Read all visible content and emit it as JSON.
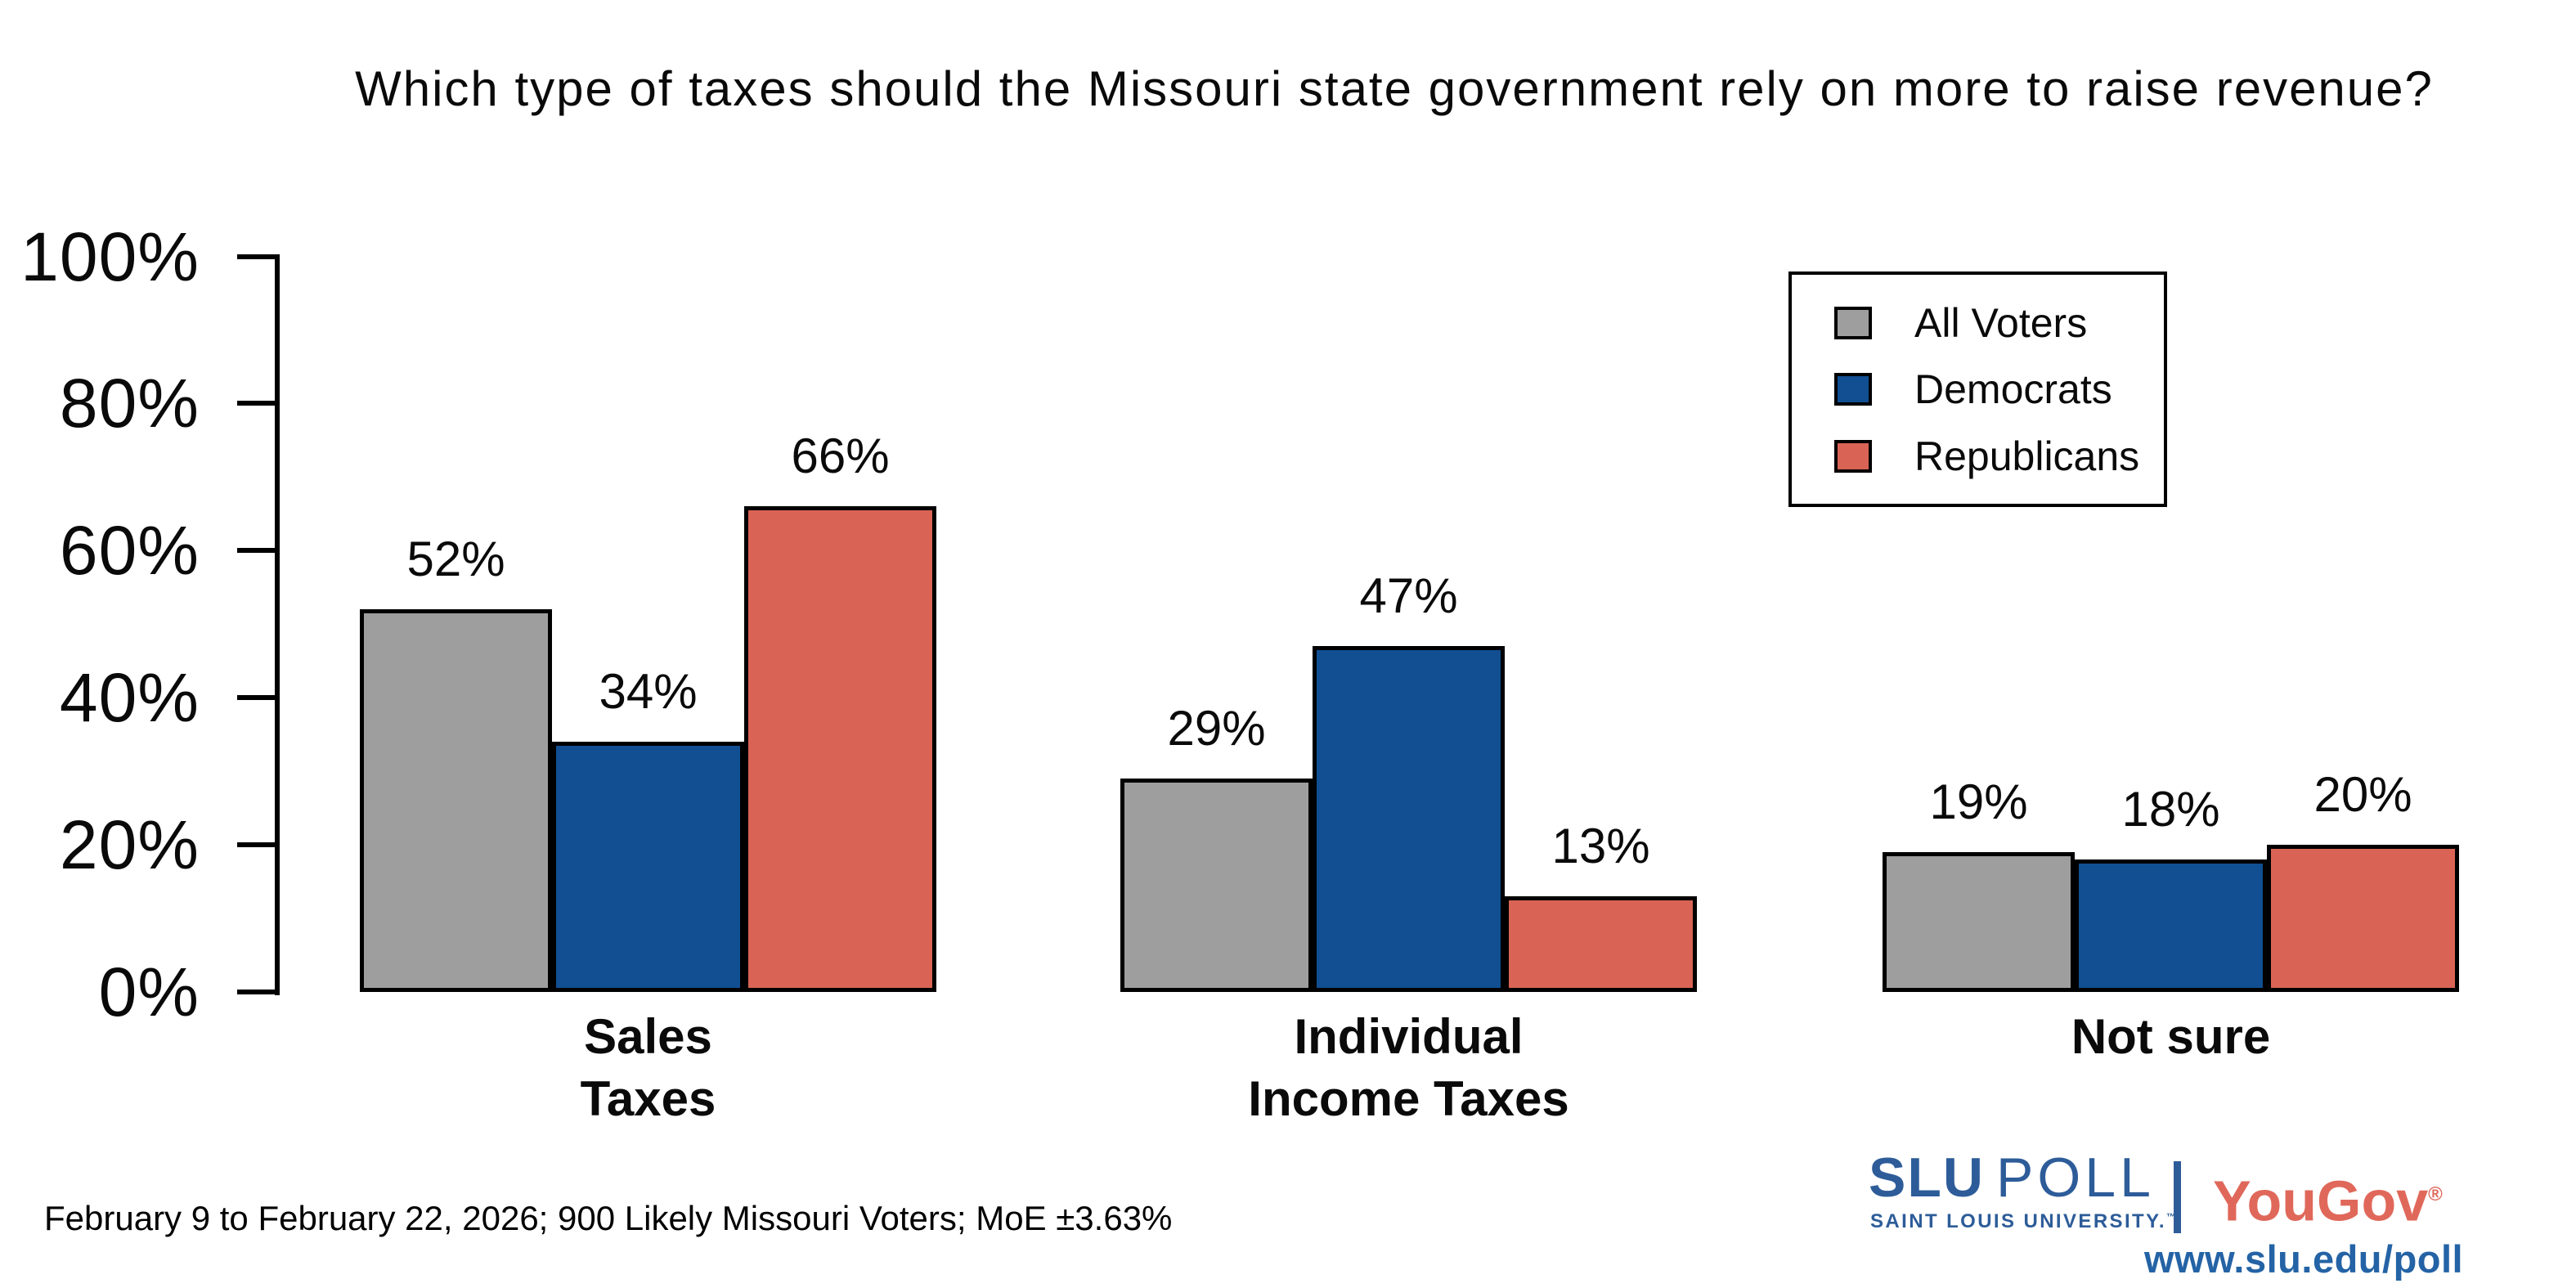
{
  "title": "Which type of taxes should the Missouri state government rely on more to raise revenue?",
  "footnote": "February 9 to February 22, 2026; 900 Likely Missouri Voters; MoE ±3.63%",
  "chart_data": {
    "type": "bar",
    "title": "Which type of taxes should the Missouri state government rely on more to raise revenue?",
    "categories": [
      "Sales Taxes",
      "Individual Income Taxes",
      "Not sure"
    ],
    "category_labels": [
      [
        "Sales",
        "Taxes"
      ],
      [
        "Individual",
        "Income Taxes"
      ],
      [
        "Not sure"
      ]
    ],
    "series": [
      {
        "name": "All Voters",
        "color": "#9E9E9E",
        "values": [
          52,
          29,
          19
        ]
      },
      {
        "name": "Democrats",
        "color": "#114F92",
        "values": [
          34,
          47,
          18
        ]
      },
      {
        "name": "Republicans",
        "color": "#D96455",
        "values": [
          66,
          13,
          20
        ]
      }
    ],
    "value_labels": [
      [
        "52%",
        "34%",
        "66%"
      ],
      [
        "29%",
        "47%",
        "13%"
      ],
      [
        "19%",
        "18%",
        "20%"
      ]
    ],
    "xlabel": "",
    "ylabel": "",
    "ylim": [
      0,
      100
    ],
    "yticks": [
      "0%",
      "20%",
      "40%",
      "60%",
      "80%",
      "100%"
    ],
    "grid": false,
    "legend_position": "top-right",
    "bar_outline_color": "#000000",
    "axis_color": "#000000"
  },
  "branding": {
    "slu_poll": {
      "primary": "SLU",
      "secondary": "POLL",
      "subtitle": "SAINT LOUIS UNIVERSITY.",
      "trademark": "™",
      "color": "#2D5C99"
    },
    "divider_color": "#2D5C99",
    "yougov": {
      "name": "YouGov",
      "registered": "®",
      "color": "#E0685A"
    },
    "url": {
      "text": "www.slu.edu/poll",
      "color": "#2463A5"
    }
  }
}
